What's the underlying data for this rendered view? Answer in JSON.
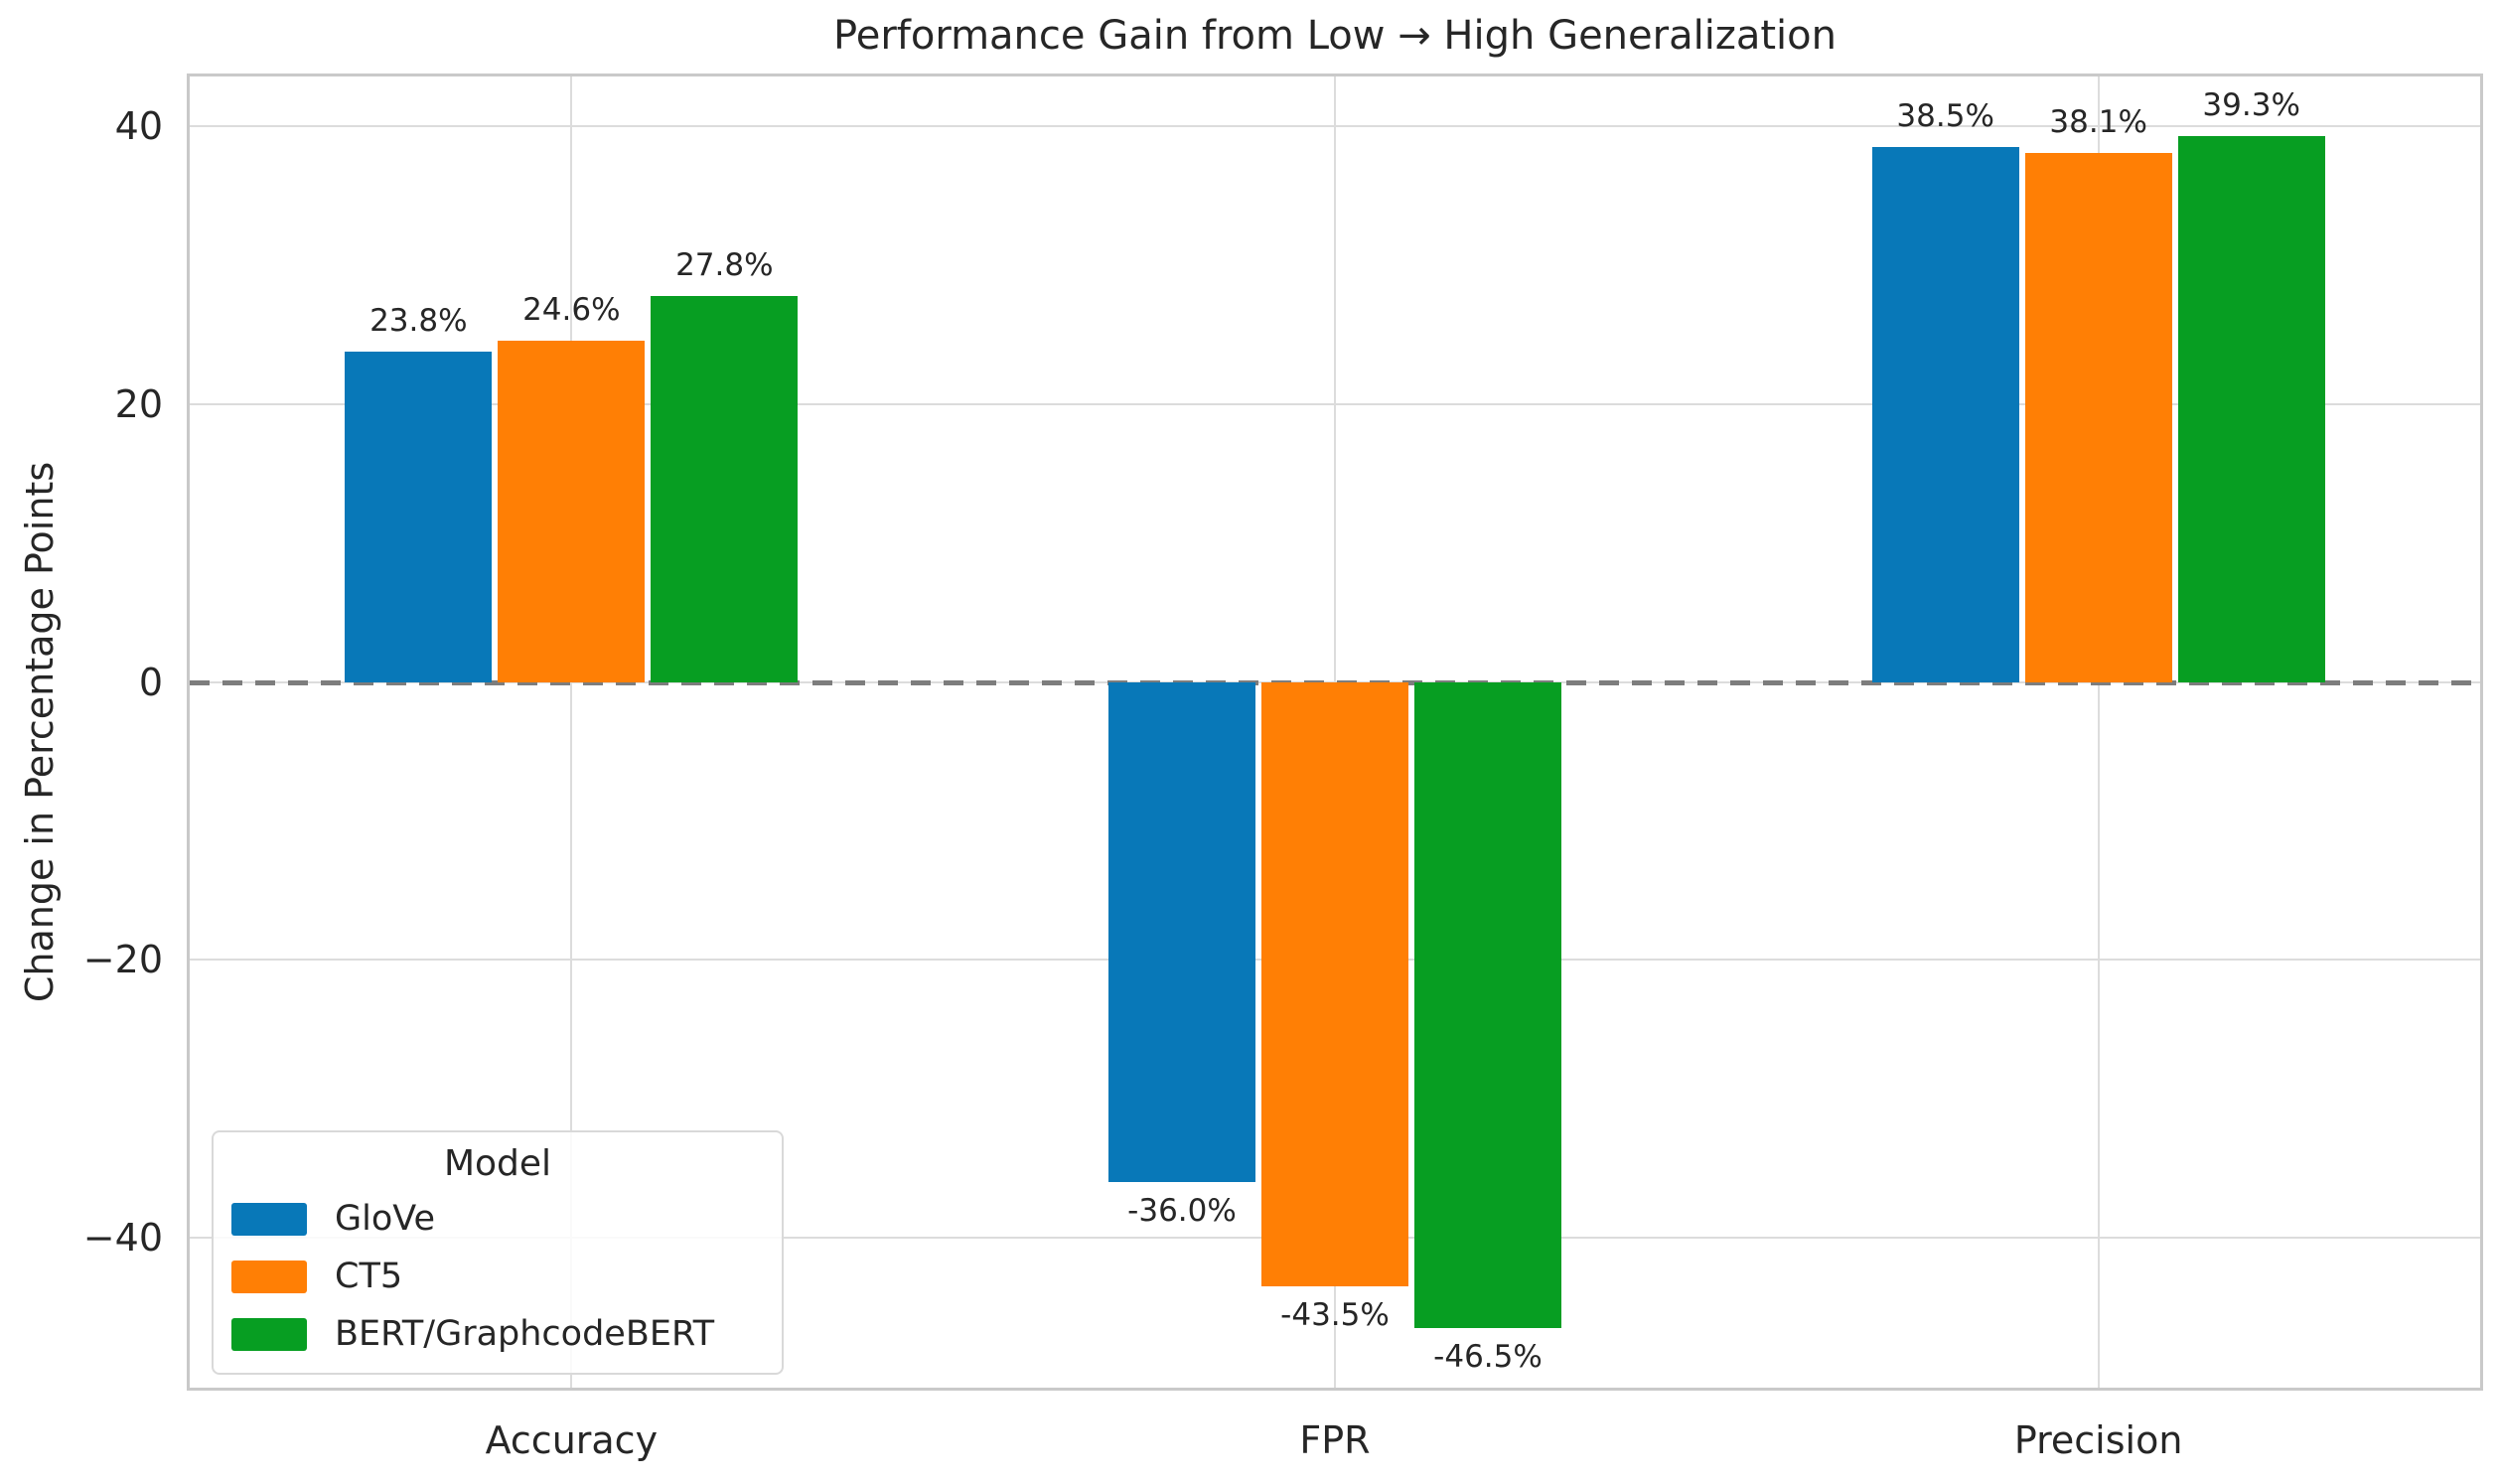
{
  "chart_data": {
    "type": "bar",
    "title": "Performance Gain from Low → High Generalization",
    "ylabel": "Change in Percentage Points",
    "xlabel": "",
    "categories": [
      "Accuracy",
      "FPR",
      "Precision"
    ],
    "series": [
      {
        "name": "GloVe",
        "color": "#0878b8",
        "values": [
          23.8,
          -36.0,
          38.5
        ],
        "labels": [
          "23.8%",
          "-36.0%",
          "38.5%"
        ]
      },
      {
        "name": "CT5",
        "color": "#ff7f05",
        "values": [
          24.6,
          -43.5,
          38.1
        ],
        "labels": [
          "24.6%",
          "-43.5%",
          "38.1%"
        ]
      },
      {
        "name": "BERT/GraphcodeBERT",
        "color": "#079e22",
        "values": [
          27.8,
          -46.5,
          39.3
        ],
        "labels": [
          "27.8%",
          "-46.5%",
          "39.3%"
        ]
      }
    ],
    "yticks": [
      40,
      20,
      0,
      -20,
      -40
    ],
    "ytick_labels": [
      "40",
      "20",
      "0",
      "−20",
      "−40"
    ],
    "ylim": [
      -50.8,
      43.6
    ],
    "grid": true,
    "zero_line": true,
    "legend": {
      "title": "Model",
      "position": "lower-left"
    },
    "colors": {
      "grid": "#dcdcdc",
      "spine": "#c9c9c9",
      "zero_line": "#7d7d7d",
      "text": "#262626",
      "background": "#ffffff"
    }
  }
}
